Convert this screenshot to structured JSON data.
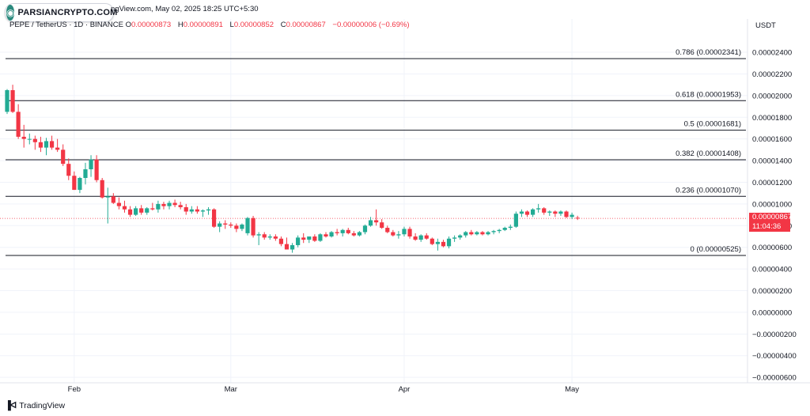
{
  "header": {
    "source_line": "ngView.com, May 02, 2025 18:25 UTC+5:30",
    "symbol": "PEPE / TetherUS · 1D · BINANCE",
    "ohlc": [
      {
        "key": "O",
        "value": "0.00000873"
      },
      {
        "key": "H",
        "value": "0.00000891"
      },
      {
        "key": "L",
        "value": "0.00000852"
      },
      {
        "key": "C",
        "value": "0.00000867"
      }
    ],
    "change": "−0.00000006 (−0.69%)"
  },
  "watermark": {
    "brand": "PARSIANCRYPTO.COM"
  },
  "footer": {
    "brand": "TradingView"
  },
  "chart_data": {
    "type": "candlestick",
    "currency": "USDT",
    "x_tick_labels": [
      "Feb",
      "Mar",
      "Apr",
      "May"
    ],
    "y_tick_labels": [
      "0.00002400",
      "0.00002200",
      "0.00002000",
      "0.00001800",
      "0.00001600",
      "0.00001400",
      "0.00001200",
      "0.00001000",
      "0.00000800",
      "0.00000600",
      "0.00000400",
      "0.00000200",
      "0.00000000",
      "−0.00000200",
      "−0.00000400",
      "−0.00000600"
    ],
    "y_ticks": [
      2.4e-05,
      2.2e-05,
      2e-05,
      1.8e-05,
      1.6e-05,
      1.4e-05,
      1.2e-05,
      1e-05,
      8e-06,
      6e-06,
      4e-06,
      2e-06,
      0,
      -2e-06,
      -4e-06,
      -6e-06
    ],
    "ylim": [
      -6.5e-06,
      2.59e-05
    ],
    "last_price": {
      "value": "0.00000867",
      "countdown": "11:04:36",
      "numeric": 8.67e-06
    },
    "fib_levels": [
      {
        "label": "0.786 (0.00002341)",
        "value": 2.341e-05
      },
      {
        "label": "0.618 (0.00001953)",
        "value": 1.953e-05
      },
      {
        "label": "0.5 (0.00001681)",
        "value": 1.681e-05
      },
      {
        "label": "0.382 (0.00001408)",
        "value": 1.408e-05
      },
      {
        "label": "0.236 (0.00001070)",
        "value": 1.07e-05
      },
      {
        "label": "0 (0.00000525)",
        "value": 5.25e-06
      }
    ],
    "colors": {
      "up": "#22ab94",
      "down": "#f23645",
      "fib": "#131722",
      "grid": "#f0f3fa",
      "axis_text": "#131722"
    },
    "candles": [
      {
        "date": "2025-01-20",
        "o": 1.85e-05,
        "h": 2.06e-05,
        "l": 1.83e-05,
        "c": 2.05e-05
      },
      {
        "date": "2025-01-21",
        "o": 2.05e-05,
        "h": 2.1e-05,
        "l": 1.84e-05,
        "c": 1.85e-05
      },
      {
        "date": "2025-01-22",
        "o": 1.85e-05,
        "h": 1.92e-05,
        "l": 1.6e-05,
        "c": 1.62e-05
      },
      {
        "date": "2025-01-23",
        "o": 1.62e-05,
        "h": 1.73e-05,
        "l": 1.52e-05,
        "c": 1.6e-05
      },
      {
        "date": "2025-01-24",
        "o": 1.6e-05,
        "h": 1.65e-05,
        "l": 1.55e-05,
        "c": 1.6e-05
      },
      {
        "date": "2025-01-25",
        "o": 1.6e-05,
        "h": 1.63e-05,
        "l": 1.5e-05,
        "c": 1.57e-05
      },
      {
        "date": "2025-01-26",
        "o": 1.57e-05,
        "h": 1.62e-05,
        "l": 1.48e-05,
        "c": 1.52e-05
      },
      {
        "date": "2025-01-27",
        "o": 1.52e-05,
        "h": 1.61e-05,
        "l": 1.45e-05,
        "c": 1.58e-05
      },
      {
        "date": "2025-01-28",
        "o": 1.58e-05,
        "h": 1.63e-05,
        "l": 1.5e-05,
        "c": 1.52e-05
      },
      {
        "date": "2025-01-29",
        "o": 1.52e-05,
        "h": 1.6e-05,
        "l": 1.48e-05,
        "c": 1.5e-05
      },
      {
        "date": "2025-01-30",
        "o": 1.5e-05,
        "h": 1.55e-05,
        "l": 1.35e-05,
        "c": 1.37e-05
      },
      {
        "date": "2025-01-31",
        "o": 1.37e-05,
        "h": 1.42e-05,
        "l": 1.22e-05,
        "c": 1.26e-05
      },
      {
        "date": "2025-02-01",
        "o": 1.26e-05,
        "h": 1.3e-05,
        "l": 1.13e-05,
        "c": 1.13e-05
      },
      {
        "date": "2025-02-02",
        "o": 1.13e-05,
        "h": 1.25e-05,
        "l": 1.1e-05,
        "c": 1.24e-05
      },
      {
        "date": "2025-02-03",
        "o": 1.24e-05,
        "h": 1.38e-05,
        "l": 1.18e-05,
        "c": 1.32e-05
      },
      {
        "date": "2025-02-04",
        "o": 1.32e-05,
        "h": 1.45e-05,
        "l": 1.25e-05,
        "c": 1.41e-05
      },
      {
        "date": "2025-02-05",
        "o": 1.41e-05,
        "h": 1.45e-05,
        "l": 1.2e-05,
        "c": 1.22e-05
      },
      {
        "date": "2025-02-06",
        "o": 1.22e-05,
        "h": 1.24e-05,
        "l": 1.05e-05,
        "c": 1.06e-05
      },
      {
        "date": "2025-02-07",
        "o": 1.06e-05,
        "h": 1.15e-05,
        "l": 8.2e-06,
        "c": 1.07e-05
      },
      {
        "date": "2025-02-08",
        "o": 1.07e-05,
        "h": 1.1e-05,
        "l": 1e-05,
        "c": 1.01e-05
      },
      {
        "date": "2025-02-09",
        "o": 1.01e-05,
        "h": 1.06e-05,
        "l": 9.5e-06,
        "c": 9.8e-06
      },
      {
        "date": "2025-02-10",
        "o": 9.8e-06,
        "h": 1.03e-05,
        "l": 9.2e-06,
        "c": 9.5e-06
      },
      {
        "date": "2025-02-11",
        "o": 9.5e-06,
        "h": 9.8e-06,
        "l": 8.8e-06,
        "c": 9e-06
      },
      {
        "date": "2025-02-12",
        "o": 9e-06,
        "h": 9.8e-06,
        "l": 8.9e-06,
        "c": 9.6e-06
      },
      {
        "date": "2025-02-13",
        "o": 9.6e-06,
        "h": 9.9e-06,
        "l": 9e-06,
        "c": 9.2e-06
      },
      {
        "date": "2025-02-14",
        "o": 9.2e-06,
        "h": 9.7e-06,
        "l": 9e-06,
        "c": 9.6e-06
      },
      {
        "date": "2025-02-15",
        "o": 9.6e-06,
        "h": 1.01e-05,
        "l": 9.4e-06,
        "c": 9.5e-06
      },
      {
        "date": "2025-02-16",
        "o": 9.5e-06,
        "h": 1.03e-05,
        "l": 9.2e-06,
        "c": 1e-05
      },
      {
        "date": "2025-02-17",
        "o": 1e-05,
        "h": 1.02e-05,
        "l": 9.5e-06,
        "c": 9.8e-06
      },
      {
        "date": "2025-02-18",
        "o": 9.8e-06,
        "h": 1.03e-05,
        "l": 9.5e-06,
        "c": 1.01e-05
      },
      {
        "date": "2025-02-19",
        "o": 1.01e-05,
        "h": 1.04e-05,
        "l": 9.7e-06,
        "c": 9.9e-06
      },
      {
        "date": "2025-02-20",
        "o": 9.9e-06,
        "h": 1.02e-05,
        "l": 9.5e-06,
        "c": 9.7e-06
      },
      {
        "date": "2025-02-21",
        "o": 9.7e-06,
        "h": 1e-05,
        "l": 9e-06,
        "c": 9.3e-06
      },
      {
        "date": "2025-02-22",
        "o": 9.3e-06,
        "h": 9.8e-06,
        "l": 9.1e-06,
        "c": 9.5e-06
      },
      {
        "date": "2025-02-23",
        "o": 9.5e-06,
        "h": 9.8e-06,
        "l": 9.1e-06,
        "c": 9.3e-06
      },
      {
        "date": "2025-02-24",
        "o": 9.3e-06,
        "h": 9.5e-06,
        "l": 8.8e-06,
        "c": 9.4e-06
      },
      {
        "date": "2025-02-25",
        "o": 9.4e-06,
        "h": 9.7e-06,
        "l": 9e-06,
        "c": 9.5e-06
      },
      {
        "date": "2025-02-26",
        "o": 9.5e-06,
        "h": 9.6e-06,
        "l": 7.8e-06,
        "c": 7.9e-06
      },
      {
        "date": "2025-02-27",
        "o": 7.9e-06,
        "h": 8.4e-06,
        "l": 7.4e-06,
        "c": 8.2e-06
      },
      {
        "date": "2025-02-28",
        "o": 8.2e-06,
        "h": 8.5e-06,
        "l": 7.7e-06,
        "c": 8.1e-06
      },
      {
        "date": "2025-03-01",
        "o": 8.1e-06,
        "h": 8.3e-06,
        "l": 7.8e-06,
        "c": 8e-06
      },
      {
        "date": "2025-03-02",
        "o": 8e-06,
        "h": 8.2e-06,
        "l": 7.4e-06,
        "c": 7.7e-06
      },
      {
        "date": "2025-03-03",
        "o": 7.7e-06,
        "h": 8.2e-06,
        "l": 7.5e-06,
        "c": 8.1e-06
      },
      {
        "date": "2025-03-04",
        "o": 7.3e-06,
        "h": 8.8e-06,
        "l": 7.1e-06,
        "c": 8.7e-06
      },
      {
        "date": "2025-03-05",
        "o": 8.7e-06,
        "h": 8.9e-06,
        "l": 6.9e-06,
        "c": 7.1e-06
      },
      {
        "date": "2025-03-06",
        "o": 7.1e-06,
        "h": 7.4e-06,
        "l": 6.2e-06,
        "c": 7.2e-06
      },
      {
        "date": "2025-03-07",
        "o": 7.2e-06,
        "h": 7.4e-06,
        "l": 6.7e-06,
        "c": 6.9e-06
      },
      {
        "date": "2025-03-08",
        "o": 6.9e-06,
        "h": 7.2e-06,
        "l": 6.7e-06,
        "c": 7e-06
      },
      {
        "date": "2025-03-09",
        "o": 7e-06,
        "h": 7.2e-06,
        "l": 6.6e-06,
        "c": 6.8e-06
      },
      {
        "date": "2025-03-10",
        "o": 6.8e-06,
        "h": 7e-06,
        "l": 6.1e-06,
        "c": 6.3e-06
      },
      {
        "date": "2025-03-11",
        "o": 6.3e-06,
        "h": 6.9e-06,
        "l": 5.8e-06,
        "c": 5.8e-06
      },
      {
        "date": "2025-03-12",
        "o": 5.8e-06,
        "h": 6.4e-06,
        "l": 5.5e-06,
        "c": 6.2e-06
      },
      {
        "date": "2025-03-13",
        "o": 6.2e-06,
        "h": 7.1e-06,
        "l": 6e-06,
        "c": 6.9e-06
      },
      {
        "date": "2025-03-14",
        "o": 6.9e-06,
        "h": 7.3e-06,
        "l": 6.4e-06,
        "c": 6.7e-06
      },
      {
        "date": "2025-03-15",
        "o": 6.7e-06,
        "h": 7e-06,
        "l": 6.4e-06,
        "c": 7e-06
      },
      {
        "date": "2025-03-16",
        "o": 7e-06,
        "h": 7.2e-06,
        "l": 6.5e-06,
        "c": 6.6e-06
      },
      {
        "date": "2025-03-17",
        "o": 6.6e-06,
        "h": 7.3e-06,
        "l": 6.5e-06,
        "c": 7.2e-06
      },
      {
        "date": "2025-03-18",
        "o": 7.2e-06,
        "h": 7.4e-06,
        "l": 6.9e-06,
        "c": 7e-06
      },
      {
        "date": "2025-03-19",
        "o": 7e-06,
        "h": 7.5e-06,
        "l": 6.9e-06,
        "c": 7.4e-06
      },
      {
        "date": "2025-03-20",
        "o": 7.4e-06,
        "h": 7.7e-06,
        "l": 7.1e-06,
        "c": 7.3e-06
      },
      {
        "date": "2025-03-21",
        "o": 7.3e-06,
        "h": 7.7e-06,
        "l": 7e-06,
        "c": 7.6e-06
      },
      {
        "date": "2025-03-22",
        "o": 7.6e-06,
        "h": 7.8e-06,
        "l": 7.2e-06,
        "c": 7.3e-06
      },
      {
        "date": "2025-03-23",
        "o": 7.3e-06,
        "h": 7.5e-06,
        "l": 7e-06,
        "c": 7.1e-06
      },
      {
        "date": "2025-03-24",
        "o": 7.1e-06,
        "h": 7.5e-06,
        "l": 7e-06,
        "c": 7.4e-06
      },
      {
        "date": "2025-03-25",
        "o": 7.4e-06,
        "h": 8.1e-06,
        "l": 7.2e-06,
        "c": 8e-06
      },
      {
        "date": "2025-03-26",
        "o": 8e-06,
        "h": 8.8e-06,
        "l": 7.9e-06,
        "c": 8.5e-06
      },
      {
        "date": "2025-03-27",
        "o": 8.5e-06,
        "h": 9.5e-06,
        "l": 8e-06,
        "c": 8.3e-06
      },
      {
        "date": "2025-03-28",
        "o": 8.3e-06,
        "h": 8.6e-06,
        "l": 7.7e-06,
        "c": 7.8e-06
      },
      {
        "date": "2025-03-29",
        "o": 7.8e-06,
        "h": 8e-06,
        "l": 7.3e-06,
        "c": 7.4e-06
      },
      {
        "date": "2025-03-30",
        "o": 7.4e-06,
        "h": 7.6e-06,
        "l": 7e-06,
        "c": 7.1e-06
      },
      {
        "date": "2025-03-31",
        "o": 7.1e-06,
        "h": 7.5e-06,
        "l": 6.8e-06,
        "c": 7.2e-06
      },
      {
        "date": "2025-04-01",
        "o": 7.2e-06,
        "h": 7.9e-06,
        "l": 7e-06,
        "c": 7.7e-06
      },
      {
        "date": "2025-04-02",
        "o": 7.7e-06,
        "h": 7.9e-06,
        "l": 6.8e-06,
        "c": 7e-06
      },
      {
        "date": "2025-04-03",
        "o": 7e-06,
        "h": 7.3e-06,
        "l": 6.6e-06,
        "c": 6.7e-06
      },
      {
        "date": "2025-04-04",
        "o": 6.7e-06,
        "h": 7.2e-06,
        "l": 6.5e-06,
        "c": 7.1e-06
      },
      {
        "date": "2025-04-05",
        "o": 7.1e-06,
        "h": 7.3e-06,
        "l": 6.7e-06,
        "c": 6.8e-06
      },
      {
        "date": "2025-04-06",
        "o": 6.8e-06,
        "h": 6.9e-06,
        "l": 6.2e-06,
        "c": 6.3e-06
      },
      {
        "date": "2025-04-07",
        "o": 6.3e-06,
        "h": 6.8e-06,
        "l": 5.7e-06,
        "c": 6.5e-06
      },
      {
        "date": "2025-04-08",
        "o": 6.5e-06,
        "h": 6.7e-06,
        "l": 6e-06,
        "c": 6.1e-06
      },
      {
        "date": "2025-04-09",
        "o": 6.1e-06,
        "h": 7e-06,
        "l": 5.9e-06,
        "c": 6.8e-06
      },
      {
        "date": "2025-04-10",
        "o": 6.8e-06,
        "h": 7.1e-06,
        "l": 6.5e-06,
        "c": 6.9e-06
      },
      {
        "date": "2025-04-11",
        "o": 6.9e-06,
        "h": 7.2e-06,
        "l": 6.7e-06,
        "c": 7.1e-06
      },
      {
        "date": "2025-04-12",
        "o": 7.1e-06,
        "h": 7.5e-06,
        "l": 6.9e-06,
        "c": 7.4e-06
      },
      {
        "date": "2025-04-13",
        "o": 7.4e-06,
        "h": 7.6e-06,
        "l": 7.1e-06,
        "c": 7.2e-06
      },
      {
        "date": "2025-04-14",
        "o": 7.2e-06,
        "h": 7.5e-06,
        "l": 7.1e-06,
        "c": 7.4e-06
      },
      {
        "date": "2025-04-15",
        "o": 7.4e-06,
        "h": 7.5e-06,
        "l": 7.1e-06,
        "c": 7.2e-06
      },
      {
        "date": "2025-04-16",
        "o": 7.2e-06,
        "h": 7.5e-06,
        "l": 7.1e-06,
        "c": 7.4e-06
      },
      {
        "date": "2025-04-17",
        "o": 7.4e-06,
        "h": 7.6e-06,
        "l": 7.2e-06,
        "c": 7.5e-06
      },
      {
        "date": "2025-04-18",
        "o": 7.5e-06,
        "h": 7.7e-06,
        "l": 7.3e-06,
        "c": 7.6e-06
      },
      {
        "date": "2025-04-19",
        "o": 7.6e-06,
        "h": 7.9e-06,
        "l": 7.5e-06,
        "c": 7.8e-06
      },
      {
        "date": "2025-04-20",
        "o": 7.8e-06,
        "h": 8.1e-06,
        "l": 7.6e-06,
        "c": 7.9e-06
      },
      {
        "date": "2025-04-21",
        "o": 7.9e-06,
        "h": 9.3e-06,
        "l": 7.8e-06,
        "c": 9.1e-06
      },
      {
        "date": "2025-04-22",
        "o": 9.1e-06,
        "h": 9.5e-06,
        "l": 8.8e-06,
        "c": 9.3e-06
      },
      {
        "date": "2025-04-23",
        "o": 9.3e-06,
        "h": 9.4e-06,
        "l": 8.8e-06,
        "c": 9e-06
      },
      {
        "date": "2025-04-24",
        "o": 9e-06,
        "h": 9.6e-06,
        "l": 8.8e-06,
        "c": 9.5e-06
      },
      {
        "date": "2025-04-25",
        "o": 9.5e-06,
        "h": 1e-05,
        "l": 9.2e-06,
        "c": 9.6e-06
      },
      {
        "date": "2025-04-26",
        "o": 9.6e-06,
        "h": 9.7e-06,
        "l": 9e-06,
        "c": 9.2e-06
      },
      {
        "date": "2025-04-27",
        "o": 9.2e-06,
        "h": 9.4e-06,
        "l": 8.9e-06,
        "c": 9.3e-06
      },
      {
        "date": "2025-04-28",
        "o": 9.3e-06,
        "h": 9.4e-06,
        "l": 8.8e-06,
        "c": 9.1e-06
      },
      {
        "date": "2025-04-29",
        "o": 9.1e-06,
        "h": 9.4e-06,
        "l": 8.9e-06,
        "c": 9.3e-06
      },
      {
        "date": "2025-04-30",
        "o": 9.3e-06,
        "h": 9.4e-06,
        "l": 8.7e-06,
        "c": 8.8e-06
      },
      {
        "date": "2025-05-01",
        "o": 8.8e-06,
        "h": 9.2e-06,
        "l": 8.6e-06,
        "c": 9e-06
      },
      {
        "date": "2025-05-02",
        "o": 8.73e-06,
        "h": 8.91e-06,
        "l": 8.52e-06,
        "c": 8.67e-06
      }
    ]
  }
}
